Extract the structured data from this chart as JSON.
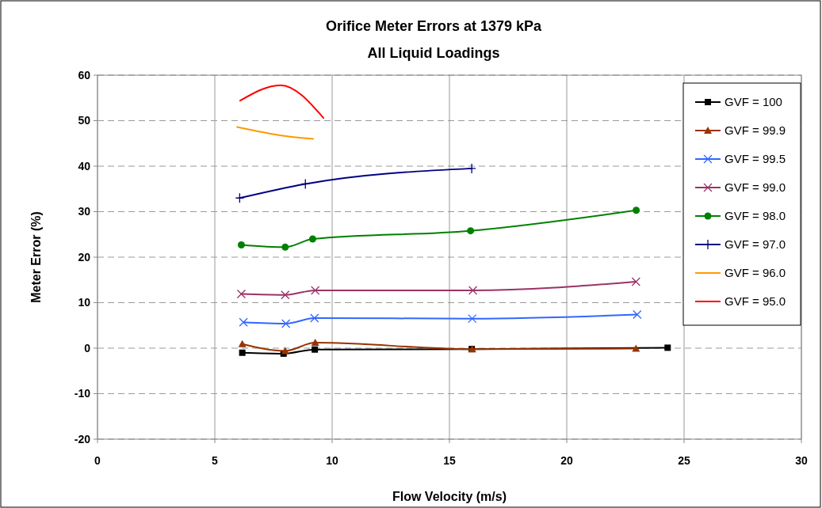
{
  "chart_data": {
    "type": "line",
    "title": "Orifice Meter Errors at 1379 kPa",
    "subtitle": "All Liquid Loadings",
    "xlabel": "Flow Velocity (m/s)",
    "ylabel": "Meter Error (%)",
    "xlim": [
      0,
      30
    ],
    "xticks": [
      0,
      5,
      10,
      15,
      20,
      25,
      30
    ],
    "ylim": [
      -20,
      60
    ],
    "yticks": [
      -20,
      -10,
      0,
      10,
      20,
      30,
      40,
      50,
      60
    ],
    "grid": true,
    "legend": "top right",
    "line_style": "solid",
    "series": [
      {
        "name": "GVF = 100",
        "color": "#000000",
        "marker": "square",
        "x": [
          6.17,
          7.93,
          9.26,
          15.95,
          24.3
        ],
        "values": [
          -1.0,
          -1.2,
          -0.3,
          -0.2,
          0.1
        ]
      },
      {
        "name": "GVF = 99.9",
        "color": "#993300",
        "marker": "triangle",
        "x": [
          6.17,
          8.0,
          9.28,
          15.97,
          22.95
        ],
        "values": [
          0.9,
          -0.6,
          1.2,
          -0.2,
          -0.1
        ]
      },
      {
        "name": "GVF = 99.5",
        "color": "#3366ff",
        "marker": "cross",
        "x": [
          6.22,
          8.03,
          9.25,
          15.97,
          23.0
        ],
        "values": [
          5.7,
          5.4,
          6.6,
          6.5,
          7.4
        ]
      },
      {
        "name": "GVF = 99.0",
        "color": "#993366",
        "marker": "cross",
        "x": [
          6.13,
          8.0,
          9.28,
          16.0,
          22.95
        ],
        "values": [
          11.9,
          11.7,
          12.7,
          12.7,
          14.6
        ]
      },
      {
        "name": "GVF = 98.0",
        "color": "#008000",
        "marker": "circle",
        "x": [
          6.13,
          8.0,
          9.17,
          15.9,
          22.96
        ],
        "values": [
          22.7,
          22.2,
          24.0,
          25.8,
          30.3
        ]
      },
      {
        "name": "GVF = 97.0",
        "color": "#000080",
        "marker": "plus",
        "x": [
          6.06,
          8.86,
          15.95
        ],
        "values": [
          33.0,
          36.1,
          39.5
        ]
      },
      {
        "name": "GVF = 96.0",
        "color": "#ff9900",
        "marker": "none",
        "x": [
          5.95,
          7.9,
          9.19
        ],
        "values": [
          48.6,
          46.7,
          46.0
        ]
      },
      {
        "name": "GVF = 95.0",
        "color": "#ff0000",
        "marker": "none",
        "x": [
          6.08,
          7.8,
          9.63
        ],
        "values": [
          54.4,
          57.8,
          50.6
        ]
      }
    ]
  }
}
